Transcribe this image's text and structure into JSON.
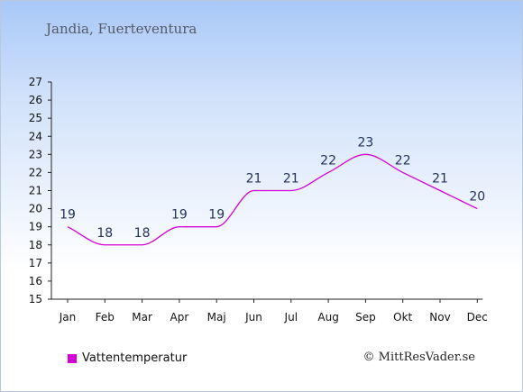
{
  "header": {
    "location": "Jandia, Fuerteventura"
  },
  "footer": {
    "credit": "© MittResVader.se"
  },
  "chart_data": {
    "type": "line",
    "categories": [
      "Jan",
      "Feb",
      "Mar",
      "Apr",
      "Maj",
      "Jun",
      "Jul",
      "Aug",
      "Sep",
      "Okt",
      "Nov",
      "Dec"
    ],
    "series": [
      {
        "name": "Vattentemperatur",
        "values": [
          19,
          18,
          18,
          19,
          19,
          21,
          21,
          22,
          23,
          22,
          21,
          20
        ],
        "color": "#d400d4"
      }
    ],
    "ylim": [
      15,
      27
    ],
    "yticks": [
      15,
      16,
      17,
      18,
      19,
      20,
      21,
      22,
      23,
      24,
      25,
      26,
      27
    ],
    "data_labels": true,
    "grid": false,
    "legend_position": "bottom-left"
  }
}
